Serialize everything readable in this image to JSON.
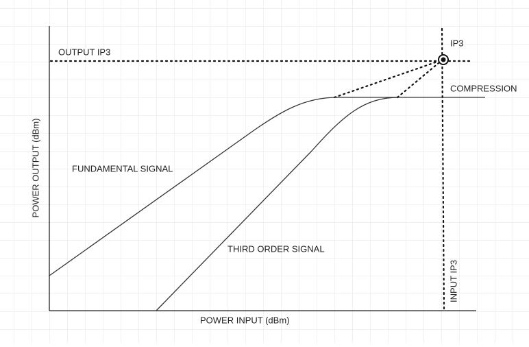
{
  "labels": {
    "output_ip3": "OUTPUT IP3",
    "ip3": "IP3",
    "compression": "COMPRESSION",
    "fundamental_signal": "FUNDAMENTAL SIGNAL",
    "third_order_signal": "THIRD ORDER SIGNAL",
    "x_axis": "POWER INPUT (dBm)",
    "y_axis": "POWER OUTPUT (dBm)",
    "input_ip3": "INPUT IP3"
  }
}
